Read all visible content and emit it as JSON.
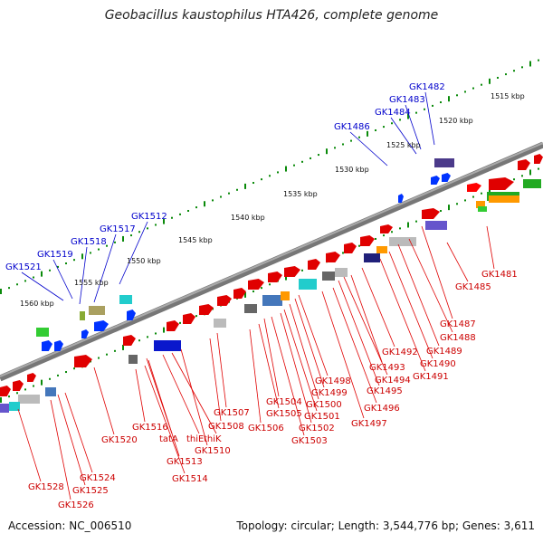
{
  "title": "Geobacillus kaustophilus HTA426, complete genome",
  "footer": {
    "accession": "Accession: NC_006510",
    "summary": "Topology: circular; Length: 3,544,776 bp; Genes: 3,611"
  },
  "scale_labels": [
    "1515 kbp",
    "1520 kbp",
    "1525 kbp",
    "1530 kbp",
    "1535 kbp",
    "1540 kbp",
    "1545 kbp",
    "1550 kbp",
    "1555 kbp",
    "1560 kbp"
  ],
  "upper_labels": [
    "GK1482",
    "GK1483",
    "GK1484",
    "GK1486",
    "GK1512",
    "GK1517",
    "GK1518",
    "GK1519",
    "GK1521"
  ],
  "lower_labels": [
    "GK1481",
    "GK1485",
    "GK1487",
    "GK1488",
    "GK1489",
    "GK1490",
    "GK1491",
    "GK1492",
    "GK1493",
    "GK1494",
    "GK1495",
    "GK1496",
    "GK1497",
    "GK1498",
    "GK1499",
    "GK1500",
    "GK1501",
    "GK1502",
    "GK1503",
    "GK1504",
    "GK1505",
    "GK1506",
    "GK1507",
    "GK1508",
    "GK1510",
    "thiK",
    "thiE",
    "GK1513",
    "tatA",
    "GK1514",
    "GK1516",
    "GK1520",
    "GK1524",
    "GK1525",
    "GK1526",
    "GK1528"
  ]
}
